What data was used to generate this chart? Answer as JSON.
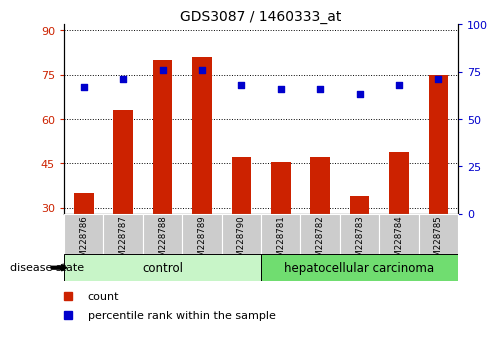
{
  "title": "GDS3087 / 1460333_at",
  "samples": [
    "GSM228786",
    "GSM228787",
    "GSM228788",
    "GSM228789",
    "GSM228790",
    "GSM228781",
    "GSM228782",
    "GSM228783",
    "GSM228784",
    "GSM228785"
  ],
  "bar_values": [
    35,
    63,
    80,
    81,
    47,
    45.5,
    47,
    34,
    49,
    75
  ],
  "dot_values": [
    67,
    71,
    76,
    76,
    68,
    66,
    66,
    63,
    68,
    71
  ],
  "ylim_left": [
    28,
    92
  ],
  "ylim_right": [
    0,
    100
  ],
  "yticks_left": [
    30,
    45,
    60,
    75,
    90
  ],
  "yticks_right": [
    0,
    25,
    50,
    75,
    100
  ],
  "groups": [
    {
      "label": "control",
      "indices": [
        0,
        1,
        2,
        3,
        4
      ],
      "color": "#c8f5c8"
    },
    {
      "label": "hepatocellular carcinoma",
      "indices": [
        5,
        6,
        7,
        8,
        9
      ],
      "color": "#70dd70"
    }
  ],
  "bar_color": "#cc2200",
  "dot_color": "#0000cc",
  "tick_bg": "#cccccc",
  "legend_count_label": "count",
  "legend_pct_label": "percentile rank within the sample",
  "disease_state_label": "disease state",
  "left_tick_color": "#cc2200",
  "right_tick_color": "#0000cc"
}
